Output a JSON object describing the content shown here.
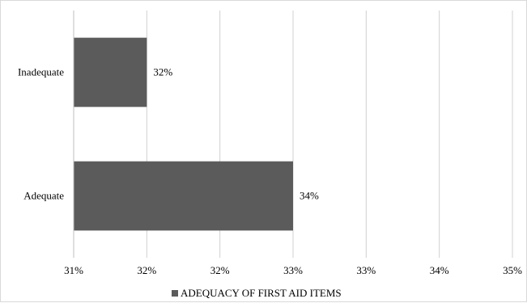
{
  "chart_data": {
    "type": "bar",
    "orientation": "horizontal",
    "categories": [
      "Inadequate",
      "Adequate"
    ],
    "series": [
      {
        "name": "ADEQUACY OF FIRST AID ITEMS",
        "values": [
          32,
          34
        ],
        "color": "#5b5b5b"
      }
    ],
    "data_labels": [
      "32%",
      "34%"
    ],
    "xlim": [
      31,
      37
    ],
    "x_tick_labels": [
      "31%",
      "32%",
      "32%",
      "33%",
      "33%",
      "34%",
      "35%"
    ],
    "grid": "vertical",
    "legend": "bottom",
    "title": "",
    "xlabel": "",
    "ylabel": ""
  }
}
